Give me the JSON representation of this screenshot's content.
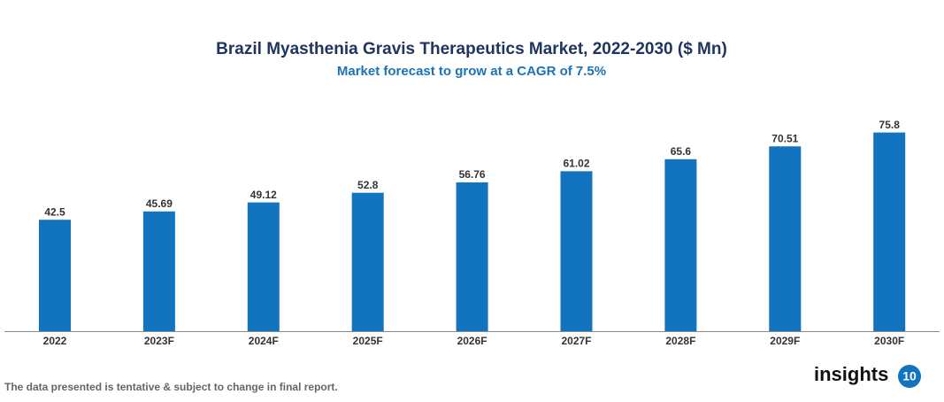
{
  "chart_data": {
    "type": "bar",
    "title": "Brazil Myasthenia Gravis Therapeutics Market, 2022-2030 ($ Mn)",
    "subtitle": "Market forecast to grow at a CAGR of 7.5%",
    "categories": [
      "2022",
      "2023F",
      "2024F",
      "2025F",
      "2026F",
      "2027F",
      "2028F",
      "2029F",
      "2030F"
    ],
    "values": [
      42.5,
      45.69,
      49.12,
      52.8,
      56.76,
      61.02,
      65.6,
      70.51,
      75.8
    ],
    "color": "#1273bf",
    "footnote": "The data presented is tentative & subject to change in final report."
  },
  "logo": {
    "text": "insights",
    "badge": "10"
  }
}
